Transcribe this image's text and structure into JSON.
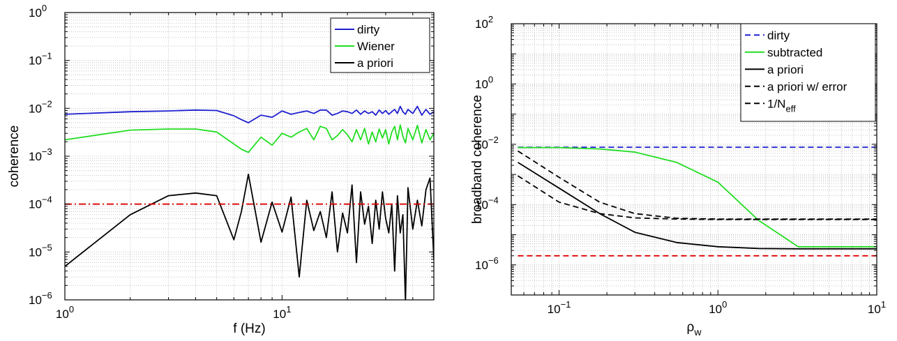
{
  "chart_data": [
    {
      "type": "line",
      "title": "",
      "xlabel": "f (Hz)",
      "ylabel": "coherence",
      "xscale": "log",
      "yscale": "log",
      "xlim": [
        1,
        50
      ],
      "ylim": [
        1e-06,
        1
      ],
      "grid": true,
      "legend_position": "top-right",
      "x_ticks": [
        {
          "v": 1,
          "base": "10",
          "exp": "0"
        },
        {
          "v": 10,
          "base": "10",
          "exp": "1"
        }
      ],
      "y_ticks": [
        {
          "v": 1,
          "base": "10",
          "exp": "0"
        },
        {
          "v": 0.1,
          "base": "10",
          "exp": "−1"
        },
        {
          "v": 0.01,
          "base": "10",
          "exp": "−2"
        },
        {
          "v": 0.001,
          "base": "10",
          "exp": "−3"
        },
        {
          "v": 0.0001,
          "base": "10",
          "exp": "−4"
        },
        {
          "v": 1e-05,
          "base": "10",
          "exp": "−5"
        },
        {
          "v": 1e-06,
          "base": "10",
          "exp": "−6"
        }
      ],
      "series": [
        {
          "name": "dirty",
          "color": "#1f1fd1",
          "style": "solid",
          "legend": true,
          "x": [
            1,
            2,
            3,
            4,
            5,
            6,
            6.5,
            7,
            8,
            9,
            10,
            11,
            12,
            13,
            14,
            15,
            16,
            17,
            18,
            19,
            20,
            21,
            22,
            23,
            24,
            25,
            26,
            27,
            28,
            29,
            30,
            31,
            32,
            33,
            34,
            35,
            36,
            37,
            38,
            40,
            42,
            44,
            46,
            48,
            50
          ],
          "y": [
            0.0075,
            0.0085,
            0.0088,
            0.0092,
            0.009,
            0.007,
            0.0058,
            0.005,
            0.0072,
            0.0065,
            0.0088,
            0.0075,
            0.0082,
            0.0088,
            0.0078,
            0.0092,
            0.0092,
            0.0072,
            0.0078,
            0.0088,
            0.0085,
            0.0078,
            0.0092,
            0.0075,
            0.0088,
            0.0078,
            0.0085,
            0.0072,
            0.0092,
            0.0078,
            0.009,
            0.0075,
            0.0085,
            0.0095,
            0.0078,
            0.011,
            0.0085,
            0.0075,
            0.0095,
            0.0078,
            0.011,
            0.0072,
            0.0095,
            0.0075,
            0.0085
          ]
        },
        {
          "name": "Wiener",
          "color": "#22dd22",
          "style": "solid",
          "legend": true,
          "x": [
            1,
            2,
            3,
            4,
            5,
            6,
            6.5,
            7,
            8,
            9,
            10,
            11,
            12,
            13,
            14,
            15,
            16,
            17,
            18,
            19,
            20,
            21,
            22,
            23,
            24,
            25,
            26,
            27,
            28,
            29,
            30,
            31,
            32,
            33,
            34,
            35,
            36,
            37,
            38,
            40,
            42,
            44,
            46,
            48,
            50
          ],
          "y": [
            0.0022,
            0.0035,
            0.0037,
            0.0037,
            0.0032,
            0.0018,
            0.0014,
            0.0012,
            0.0025,
            0.0017,
            0.003,
            0.0025,
            0.0032,
            0.0038,
            0.0022,
            0.0042,
            0.0038,
            0.0022,
            0.0027,
            0.0036,
            0.0028,
            0.002,
            0.0036,
            0.0022,
            0.0038,
            0.0018,
            0.0032,
            0.002,
            0.0037,
            0.0024,
            0.0036,
            0.0018,
            0.0032,
            0.0042,
            0.0022,
            0.0045,
            0.0026,
            0.0019,
            0.0038,
            0.0022,
            0.0044,
            0.0019,
            0.0036,
            0.0022,
            0.003
          ]
        },
        {
          "name": "a priori",
          "color": "#000000",
          "style": "solid",
          "legend": true,
          "x": [
            1,
            2,
            3,
            4,
            5,
            6,
            6.5,
            7,
            8,
            9,
            10,
            11,
            12,
            13,
            14,
            15,
            16,
            17,
            18,
            19,
            20,
            21,
            22,
            23,
            24,
            25,
            26,
            27,
            28,
            29,
            30,
            31,
            32,
            33,
            34,
            35,
            36,
            37,
            38,
            40,
            42,
            44,
            46,
            48,
            50
          ],
          "y": [
            5e-06,
            6e-05,
            0.00015,
            0.00017,
            0.00015,
            1.8e-05,
            7e-05,
            0.00042,
            1.6e-05,
            0.00011,
            2.6e-05,
            0.00014,
            3e-06,
            0.00012,
            2.8e-05,
            7e-05,
            2e-05,
            0.00018,
            1e-05,
            6.5e-05,
            2.5e-05,
            0.00025,
            6e-06,
            0.00018,
            3.8e-05,
            9e-05,
            1.5e-05,
            0.00012,
            3e-05,
            0.00018,
            5e-05,
            2.5e-05,
            0.0001,
            4e-06,
            0.00015,
            2.5e-05,
            6e-05,
            9e-07,
            0.00022,
            3e-05,
            0.00012,
            3.5e-05,
            0.0002,
            0.00035,
            7e-06
          ]
        },
        {
          "name": "",
          "color": "#dd0000",
          "style": "dashdot",
          "legend": false,
          "x": [
            1,
            50
          ],
          "y": [
            0.0001,
            0.0001
          ]
        }
      ]
    },
    {
      "type": "line",
      "title": "",
      "xlabel": "ρ_w",
      "ylabel": "broadband coherence",
      "xscale": "log",
      "yscale": "log",
      "xlim": [
        0.05,
        10
      ],
      "ylim": [
        1e-07,
        100
      ],
      "grid": true,
      "legend_position": "top-right",
      "x_ticks": [
        {
          "v": 0.1,
          "base": "10",
          "exp": "−1"
        },
        {
          "v": 1,
          "base": "10",
          "exp": "0"
        },
        {
          "v": 10,
          "base": "10",
          "exp": "1"
        }
      ],
      "y_ticks": [
        {
          "v": 100,
          "base": "10",
          "exp": "2"
        },
        {
          "v": 1,
          "base": "10",
          "exp": "0"
        },
        {
          "v": 0.01,
          "base": "10",
          "exp": "−2"
        },
        {
          "v": 0.0001,
          "base": "10",
          "exp": "−4"
        },
        {
          "v": 1e-06,
          "base": "10",
          "exp": "−6"
        }
      ],
      "series": [
        {
          "name": "dirty",
          "color": "#1f1fd1",
          "style": "dashed",
          "legend": true,
          "x": [
            0.055,
            10
          ],
          "y": [
            0.008,
            0.008
          ]
        },
        {
          "name": "subtracted",
          "color": "#22dd22",
          "style": "solid",
          "legend": true,
          "x": [
            0.055,
            0.1,
            0.18,
            0.3,
            0.55,
            1,
            1.8,
            3.2,
            5.6,
            10
          ],
          "y": [
            0.0078,
            0.0078,
            0.007,
            0.0055,
            0.0025,
            0.00055,
            3e-05,
            4e-06,
            4e-06,
            4e-06
          ]
        },
        {
          "name": "a priori",
          "color": "#000000",
          "style": "solid",
          "legend": true,
          "x": [
            0.055,
            0.1,
            0.18,
            0.3,
            0.55,
            1,
            1.8,
            3.2,
            5.6,
            10
          ],
          "y": [
            0.0025,
            0.00035,
            5e-05,
            1.2e-05,
            5.5e-06,
            4e-06,
            3.5e-06,
            3.4e-06,
            3.4e-06,
            3.4e-06
          ]
        },
        {
          "name": "a priori w/ error",
          "color": "#000000",
          "style": "dashed",
          "legend": true,
          "x": [
            0.055,
            0.1,
            0.18,
            0.3,
            0.55,
            1,
            1.8,
            3.2,
            5.6,
            10
          ],
          "y": [
            0.006,
            0.0008,
            0.00012,
            5e-05,
            3.5e-05,
            3.3e-05,
            3.3e-05,
            3.3e-05,
            3.3e-05,
            3.3e-05
          ]
        },
        {
          "name": "1/N",
          "name_sub": "eff",
          "color": "#000000",
          "style": "dashed",
          "legend": true,
          "x": [
            0.055,
            0.1,
            0.18,
            0.3,
            0.55,
            1,
            1.8,
            3.2,
            5.6,
            10
          ],
          "y": [
            0.0009,
            0.00012,
            5e-05,
            3.6e-05,
            3.3e-05,
            3.2e-05,
            3.2e-05,
            3.2e-05,
            3.2e-05,
            3.2e-05
          ]
        },
        {
          "name": "",
          "color": "#dd0000",
          "style": "dashed",
          "legend": false,
          "x": [
            0.055,
            10
          ],
          "y": [
            2e-06,
            2e-06
          ]
        }
      ]
    }
  ]
}
